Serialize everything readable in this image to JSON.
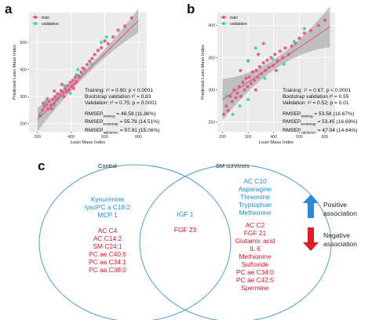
{
  "panels": {
    "a": {
      "letter": "a",
      "legend": [
        {
          "name": "train",
          "color": "#e8537a"
        },
        {
          "name": "validation",
          "color": "#35d6a8"
        }
      ],
      "xlabel": "Lean Mass Index",
      "ylabel": "Predicted Lean Mass Index",
      "xticks": [
        "200",
        "400",
        "600",
        "800"
      ],
      "yticks": [
        "200",
        "300",
        "400",
        "500"
      ],
      "stats": {
        "line1": "Training:  r² = 0.90;  p < 0.0001",
        "line2": "Bootstrap validation  r² = 0.83",
        "line3": "Validation:  r² = 0.75;  p = 0.0001",
        "rmsep1": "RMSEP",
        "rmsep1_sub": "training",
        "rmsep1_val": "= 46.59 (11.88%)",
        "rmsep2": "RMSEP",
        "rmsep2_sub": "bootstrap",
        "rmsep2_val": "= 55.79 (14.51%)",
        "rmsep3": "RMSEP",
        "rmsep3_sub": "validation",
        "rmsep3_val": "= 57.91 (15.06%)"
      }
    },
    "b": {
      "letter": "b",
      "legend": [
        {
          "name": "train",
          "color": "#e8537a"
        },
        {
          "name": "validation",
          "color": "#35d6a8"
        }
      ],
      "xlabel": "Lean Mass Index",
      "ylabel": "Predicted Lean Mass Index",
      "xticks": [
        "200",
        "300",
        "400",
        "500",
        "600"
      ],
      "yticks": [
        "250",
        "300",
        "350",
        "400"
      ],
      "stats": {
        "line1": "Training:  r² = 0.67;  p < 0.0001",
        "line2": "Bootstrap validation  r² = 0.55",
        "line3": "Validation:  r² = 0.52;  p = 0.01",
        "rmsep1": "RMSEP",
        "rmsep1_sub": "training",
        "rmsep1_val": "= 53.58 (16.67%)",
        "rmsep2": "RMSEP",
        "rmsep2_sub": "bootstrap",
        "rmsep2_val": "= 53.45 (16.69%)",
        "rmsep3": "RMSEP",
        "rmsep3_sub": "validation",
        "rmsep3_val": "= 47.04 (14.64%)"
      }
    },
    "c": {
      "letter": "c",
      "left_title": "Control",
      "right_title": "SM survivors",
      "left_blue": [
        "Kynurenine",
        "lysoPC a C18:2",
        "MCP 1"
      ],
      "left_red": [
        "AC C4",
        "AC C14:2",
        "SM C24:1",
        "PC ae C40:6",
        "PC aa C34:1",
        "PC aa C38:0"
      ],
      "middle_blue": [
        "IGF 1"
      ],
      "middle_red": [
        "FGF 23"
      ],
      "right_blue": [
        "AC C10",
        "Asparagine",
        "Threonine",
        "Tryptophan",
        "Methionine"
      ],
      "right_red": [
        "AC C2",
        "FGF 21",
        "Glutamic acid",
        "IL 6",
        "Methionine",
        "Sulfoxide",
        "PC ae C34:0",
        "PC ae C42:5",
        "Spermine"
      ],
      "positive_label": [
        "Positive",
        "association"
      ],
      "negative_label": [
        "Negative",
        "association"
      ],
      "positive_color": "#2b8ad8",
      "negative_color": "#e01b24"
    }
  },
  "chart_data": [
    {
      "type": "scatter",
      "title": "",
      "xlabel": "Lean Mass Index",
      "ylabel": "Predicted Lean Mass Index",
      "xlim": [
        150,
        850
      ],
      "ylim": [
        170,
        610
      ],
      "series": [
        {
          "name": "train",
          "color": "#e8537a",
          "points": [
            [
              215,
              230
            ],
            [
              230,
              250
            ],
            [
              240,
              262
            ],
            [
              255,
              270
            ],
            [
              262,
              255
            ],
            [
              270,
              282
            ],
            [
              280,
              268
            ],
            [
              290,
              290
            ],
            [
              298,
              275
            ],
            [
              305,
              300
            ],
            [
              312,
              288
            ],
            [
              320,
              310
            ],
            [
              325,
              295
            ],
            [
              335,
              305
            ],
            [
              340,
              322
            ],
            [
              350,
              316
            ],
            [
              358,
              300
            ],
            [
              365,
              330
            ],
            [
              372,
              318
            ],
            [
              380,
              340
            ],
            [
              388,
              325
            ],
            [
              395,
              352
            ],
            [
              402,
              338
            ],
            [
              410,
              360
            ],
            [
              418,
              346
            ],
            [
              425,
              370
            ],
            [
              432,
              355
            ],
            [
              440,
              378
            ],
            [
              450,
              372
            ],
            [
              460,
              390
            ],
            [
              470,
              405
            ],
            [
              480,
              400
            ],
            [
              495,
              418
            ],
            [
              510,
              430
            ],
            [
              525,
              440
            ],
            [
              540,
              455
            ],
            [
              560,
              470
            ],
            [
              580,
              480
            ],
            [
              600,
              505
            ],
            [
              620,
              495
            ],
            [
              650,
              520
            ],
            [
              680,
              545
            ],
            [
              720,
              560
            ],
            [
              760,
              590
            ],
            [
              235,
              275
            ],
            [
              285,
              255
            ],
            [
              345,
              345
            ],
            [
              415,
              330
            ],
            [
              260,
              292
            ],
            [
              300,
              320
            ]
          ]
        },
        {
          "name": "validation",
          "color": "#35d6a8",
          "points": [
            [
              220,
              240
            ],
            [
              250,
              282
            ],
            [
              300,
              268
            ],
            [
              330,
              300
            ],
            [
              360,
              340
            ],
            [
              395,
              312
            ],
            [
              430,
              380
            ],
            [
              470,
              382
            ],
            [
              520,
              420
            ],
            [
              580,
              500
            ],
            [
              610,
              520
            ],
            [
              440,
              400
            ]
          ]
        }
      ],
      "fit": {
        "x": [
          200,
          800
        ],
        "y": [
          215,
          580
        ]
      },
      "grid": true,
      "legend": "top-left"
    },
    {
      "type": "scatter",
      "title": "",
      "xlabel": "Lean Mass Index",
      "ylabel": "Predicted Lean Mass Index",
      "xlim": [
        180,
        640
      ],
      "ylim": [
        235,
        420
      ],
      "series": [
        {
          "name": "train",
          "color": "#e8537a",
          "points": [
            [
              205,
              262
            ],
            [
              215,
              275
            ],
            [
              222,
              268
            ],
            [
              230,
              290
            ],
            [
              238,
              282
            ],
            [
              245,
              300
            ],
            [
              252,
              288
            ],
            [
              258,
              295
            ],
            [
              265,
              305
            ],
            [
              272,
              290
            ],
            [
              280,
              312
            ],
            [
              286,
              300
            ],
            [
              292,
              318
            ],
            [
              298,
              305
            ],
            [
              305,
              320
            ],
            [
              312,
              310
            ],
            [
              318,
              328
            ],
            [
              325,
              315
            ],
            [
              332,
              330
            ],
            [
              338,
              320
            ],
            [
              345,
              336
            ],
            [
              352,
              325
            ],
            [
              360,
              342
            ],
            [
              368,
              330
            ],
            [
              375,
              346
            ],
            [
              382,
              335
            ],
            [
              390,
              350
            ],
            [
              398,
              338
            ],
            [
              405,
              355
            ],
            [
              415,
              345
            ],
            [
              425,
              360
            ],
            [
              435,
              350
            ],
            [
              445,
              365
            ],
            [
              458,
              355
            ],
            [
              470,
              368
            ],
            [
              485,
              372
            ],
            [
              500,
              380
            ],
            [
              520,
              388
            ],
            [
              545,
              392
            ],
            [
              575,
              400
            ],
            [
              600,
              408
            ],
            [
              270,
              330
            ],
            [
              300,
              345
            ],
            [
              340,
              355
            ],
            [
              410,
              330
            ],
            [
              330,
              300
            ],
            [
              360,
              372
            ]
          ]
        },
        {
          "name": "validation",
          "color": "#35d6a8",
          "points": [
            [
              215,
              290
            ],
            [
              240,
              262
            ],
            [
              268,
              275
            ],
            [
              300,
              285
            ],
            [
              330,
              365
            ],
            [
              365,
              318
            ],
            [
              395,
              348
            ],
            [
              440,
              340
            ],
            [
              480,
              375
            ],
            [
              300,
              345
            ],
            [
              520,
              395
            ]
          ]
        }
      ],
      "fit": {
        "x": [
          200,
          620
        ],
        "y": [
          285,
          398
        ]
      },
      "grid": true,
      "legend": "top-left"
    }
  ]
}
